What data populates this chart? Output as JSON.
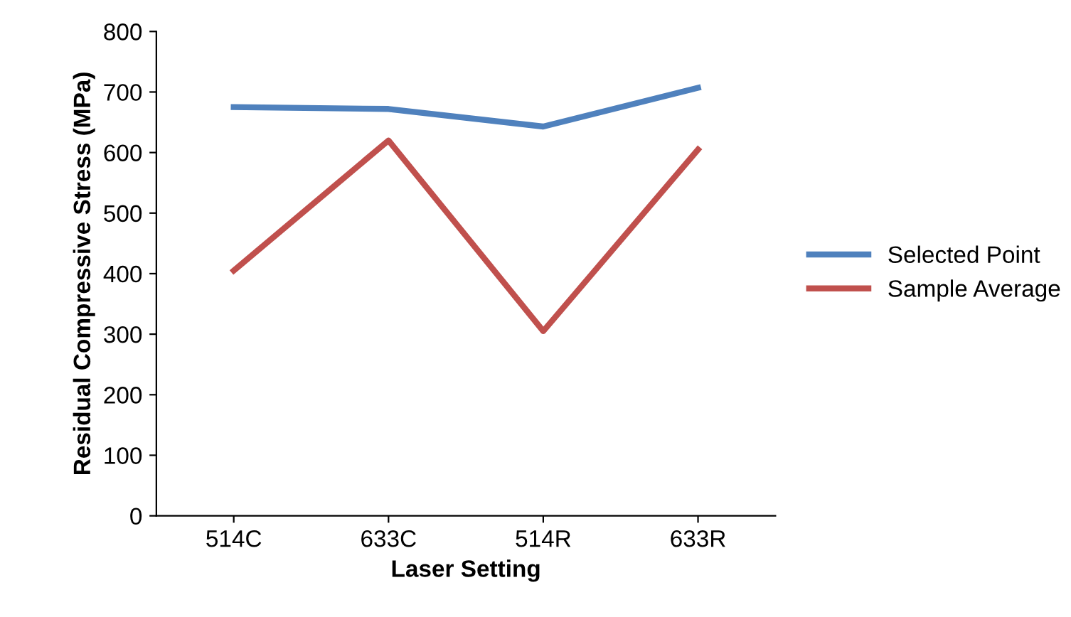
{
  "chart_data": {
    "type": "line",
    "xlabel": "Laser Setting",
    "ylabel": "Residual Compressive Stress (MPa)",
    "categories": [
      "514C",
      "633C",
      "514R",
      "633R"
    ],
    "series": [
      {
        "name": "Selected Point",
        "color": "#4f81bd",
        "values": [
          675,
          672,
          643,
          707
        ]
      },
      {
        "name": "Sample Average",
        "color": "#c0504d",
        "values": [
          405,
          620,
          305,
          605
        ]
      }
    ],
    "ylim": [
      0,
      800
    ],
    "yticks": [
      0,
      100,
      200,
      300,
      400,
      500,
      600,
      700,
      800
    ],
    "grid": false,
    "legend": "right",
    "marker": "none",
    "line_style": "solid"
  }
}
